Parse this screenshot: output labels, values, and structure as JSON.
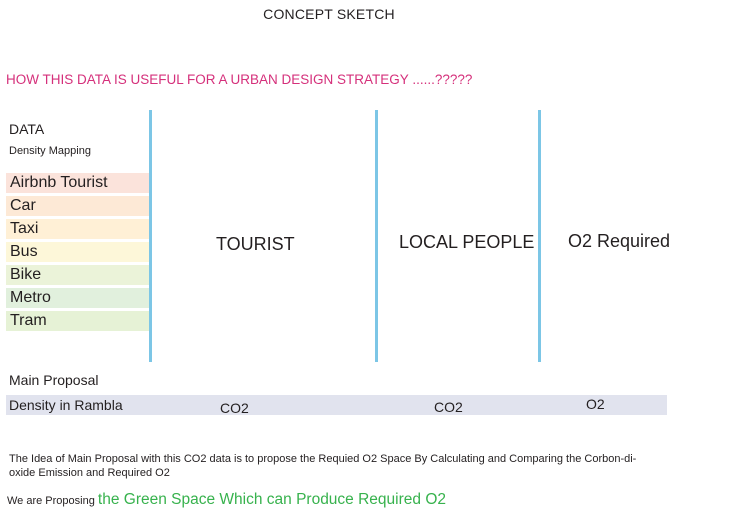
{
  "title": "CONCEPT SKETCH",
  "question": "HOW THIS  DATA IS USEFUL FOR A URBAN DESIGN STRATEGY ......?????",
  "data_label": "DATA",
  "density_label": "Density Mapping",
  "legend_items": [
    {
      "label": "Airbnb Tourist",
      "color": "#fbe3db"
    },
    {
      "label": "Car",
      "color": "#fde9d6"
    },
    {
      "label": "Taxi",
      "color": "#fff0d6"
    },
    {
      "label": "Bus",
      "color": "#fdf7d9"
    },
    {
      "label": "Bike",
      "color": "#ebf3d9"
    },
    {
      "label": "Metro",
      "color": "#e1f0dd"
    },
    {
      "label": "Tram",
      "color": "#e6f2d6"
    }
  ],
  "columns": {
    "tourist": "TOURIST",
    "local_people": "LOCAL PEOPLE",
    "o2_required": "O2 Required"
  },
  "main_proposal_label": "Main Proposal",
  "proposal_bar": {
    "label": "Density in Rambla",
    "tourist_value": "CO2",
    "local_value": "CO2",
    "o2_value": "O2"
  },
  "description": "The Idea of Main Proposal with this CO2 data is to propose the Requied O2  Space By Calculating and Comparing the Corbon-di-oxide Emission and Required O2",
  "proposing_prefix": "We are Proposing ",
  "proposing_highlight": "the Green Space Which can Produce Required O2",
  "colors": {
    "question": "#d5307b",
    "divider": "#7cc6e6",
    "highlight": "#37b24d",
    "proposal_bar": "#e1e3ee"
  }
}
